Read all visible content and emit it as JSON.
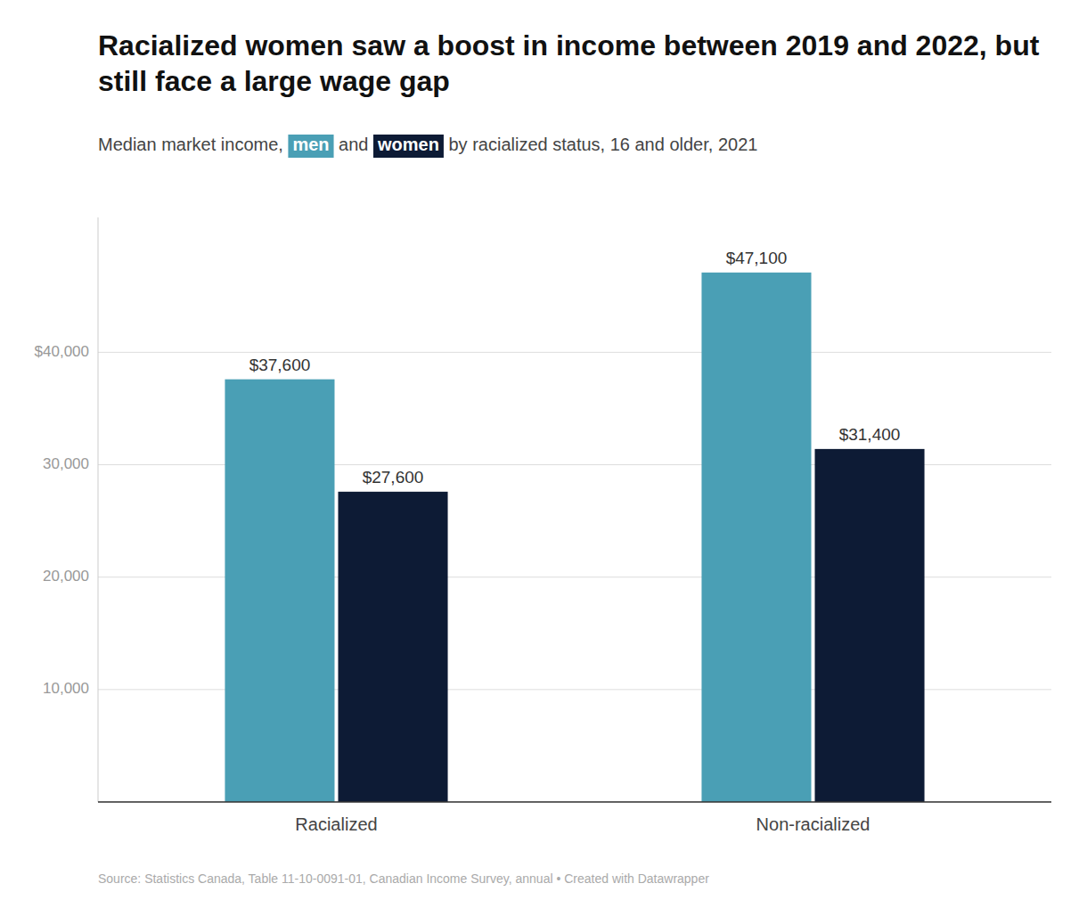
{
  "chart_data": {
    "type": "bar",
    "title": "Racialized women saw a boost in income between 2019 and 2022, but still face a large wage gap",
    "subtitle": "Median market income, men and women by racialized status, 16 and older, 2021",
    "source": "Source: Statistics Canada, Table 11-10-0091-01, Canadian Income Survey, annual • Created with Datawrapper",
    "categories": [
      "Racialized",
      "Non-racialized"
    ],
    "series": [
      {
        "name": "men",
        "color": "#4a9fb5",
        "values": [
          37600,
          47100
        ],
        "value_labels": [
          "$37,600",
          "$47,100"
        ]
      },
      {
        "name": "women",
        "color": "#0d1b35",
        "values": [
          27600,
          31400
        ],
        "value_labels": [
          "$27,600",
          "$31,400"
        ]
      }
    ],
    "ylim": [
      0,
      52000
    ],
    "yticks": [
      {
        "value": 0,
        "label": null
      },
      {
        "value": 10000,
        "label": "10,000"
      },
      {
        "value": 20000,
        "label": "20,000"
      },
      {
        "value": 30000,
        "label": "30,000"
      },
      {
        "value": 40000,
        "label": "$40,000"
      }
    ],
    "grid": true,
    "data_labels": true
  }
}
